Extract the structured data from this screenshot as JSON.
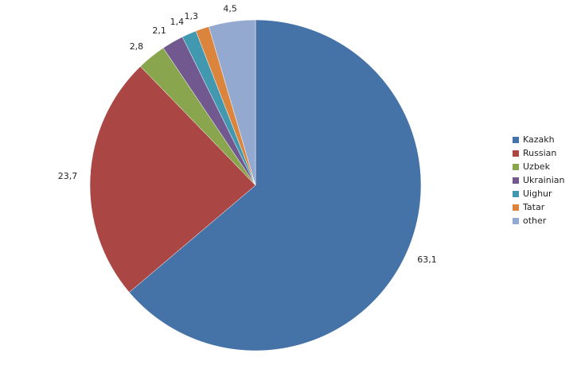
{
  "chart_data": {
    "type": "pie",
    "categories": [
      "Kazakh",
      "Russian",
      "Uzbek",
      "Ukrainian",
      "Uighur",
      "Tatar",
      "other"
    ],
    "values": [
      63.1,
      23.7,
      2.8,
      2.1,
      1.4,
      1.3,
      4.5
    ],
    "value_labels": [
      "63,1",
      "23,7",
      "2,8",
      "2,1",
      "1,4",
      "1,3",
      "4,5"
    ],
    "colors": [
      "#4572a7",
      "#aa4643",
      "#89a54e",
      "#71588f",
      "#4198af",
      "#db843d",
      "#93a9cf"
    ],
    "legend": "right"
  }
}
